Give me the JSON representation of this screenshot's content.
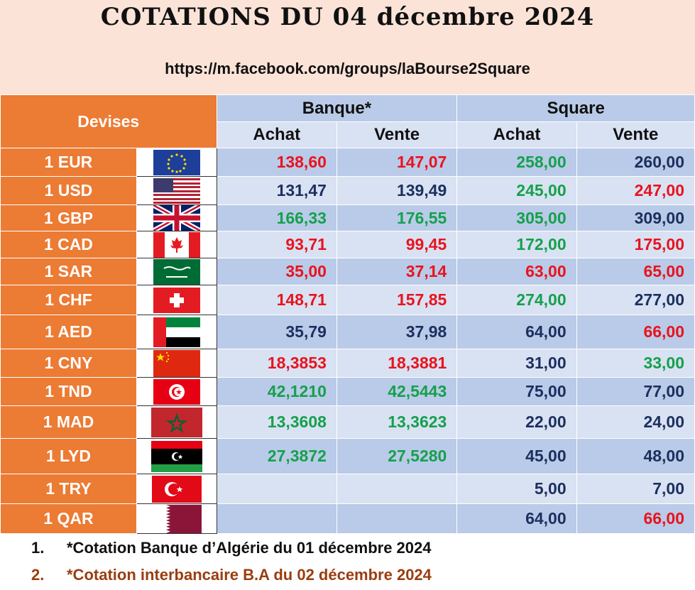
{
  "title": "COTATIONS DU 04 décembre 2024",
  "url": "https://m.facebook.com/groups/laBourse2Square",
  "headers": {
    "devises": "Devises",
    "banque": "Banque*",
    "square": "Square",
    "achat": "Achat",
    "vente": "Vente"
  },
  "rows": [
    {
      "currency": "1 EUR",
      "flag": "eu-flag-icon",
      "banque_achat": "138,60",
      "banque_vente": "147,07",
      "square_achat": "258,00",
      "square_vente": "260,00"
    },
    {
      "currency": "1 USD",
      "flag": "us-flag-icon",
      "banque_achat": "131,47",
      "banque_vente": "139,49",
      "square_achat": "245,00",
      "square_vente": "247,00"
    },
    {
      "currency": "1 GBP",
      "flag": "uk-flag-icon",
      "banque_achat": "166,33",
      "banque_vente": "176,55",
      "square_achat": "305,00",
      "square_vente": "309,00"
    },
    {
      "currency": "1 CAD",
      "flag": "canada-flag-icon",
      "banque_achat": "93,71",
      "banque_vente": "99,45",
      "square_achat": "172,00",
      "square_vente": "175,00"
    },
    {
      "currency": "1 SAR",
      "flag": "saudi-flag-icon",
      "banque_achat": "35,00",
      "banque_vente": "37,14",
      "square_achat": "63,00",
      "square_vente": "65,00"
    },
    {
      "currency": "1 CHF",
      "flag": "swiss-flag-icon",
      "banque_achat": "148,71",
      "banque_vente": "157,85",
      "square_achat": "274,00",
      "square_vente": "277,00"
    },
    {
      "currency": "1 AED",
      "flag": "uae-flag-icon",
      "banque_achat": "35,79",
      "banque_vente": "37,98",
      "square_achat": "64,00",
      "square_vente": "66,00"
    },
    {
      "currency": "1 CNY",
      "flag": "china-flag-icon",
      "banque_achat": "18,3853",
      "banque_vente": "18,3881",
      "square_achat": "31,00",
      "square_vente": "33,00"
    },
    {
      "currency": "1 TND",
      "flag": "tunisia-flag-icon",
      "banque_achat": "42,1210",
      "banque_vente": "42,5443",
      "square_achat": "75,00",
      "square_vente": "77,00"
    },
    {
      "currency": "1 MAD",
      "flag": "morocco-flag-icon",
      "banque_achat": "13,3608",
      "banque_vente": "13,3623",
      "square_achat": "22,00",
      "square_vente": "24,00"
    },
    {
      "currency": "1 LYD",
      "flag": "libya-flag-icon",
      "banque_achat": "27,3872",
      "banque_vente": "27,5280",
      "square_achat": "45,00",
      "square_vente": "48,00"
    },
    {
      "currency": "1 TRY",
      "flag": "turkey-flag-icon",
      "banque_achat": "",
      "banque_vente": "",
      "square_achat": "5,00",
      "square_vente": "7,00"
    },
    {
      "currency": "1 QAR",
      "flag": "qatar-flag-icon",
      "banque_achat": "",
      "banque_vente": "",
      "square_achat": "64,00",
      "square_vente": "66,00"
    }
  ],
  "colors": {
    "red": "#e8141e",
    "green": "#16a04c",
    "navy": "#1c2f5e",
    "orange": "#ec7b34"
  },
  "notes": [
    {
      "num": "1.",
      "text": "*Cotation Banque d’Algérie du 01 décembre 2024"
    },
    {
      "num": "2.",
      "text": "*Cotation interbancaire B.A du 02 décembre 2024"
    }
  ]
}
